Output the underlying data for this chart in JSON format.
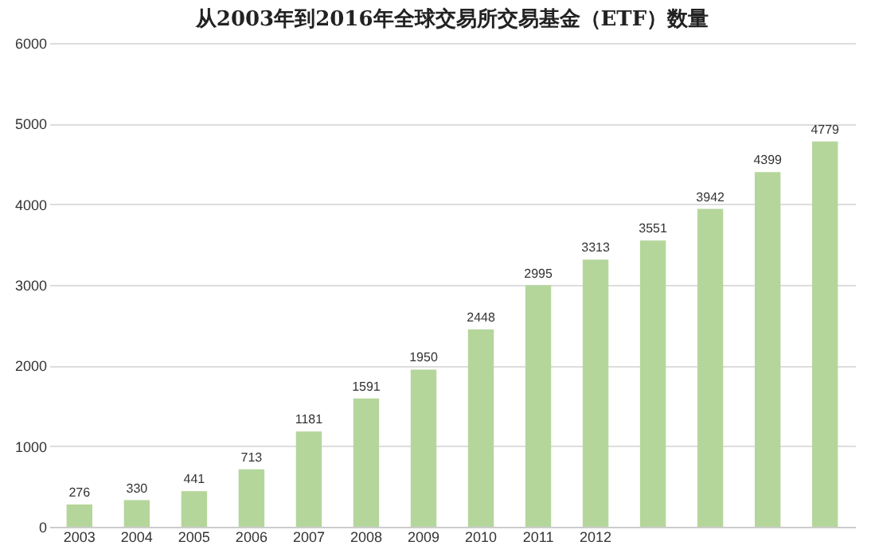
{
  "chart_data": {
    "type": "bar",
    "title": "从2003年到2016年全球交易所交易基金（ETF）数量",
    "categories": [
      "2003",
      "2004",
      "2005",
      "2006",
      "2007",
      "2008",
      "2009",
      "2010",
      "2011",
      "2012",
      null,
      null,
      null,
      null
    ],
    "values": [
      276,
      330,
      441,
      713,
      1181,
      1591,
      1950,
      2448,
      2995,
      3313,
      3551,
      3942,
      4399,
      4779
    ],
    "color": "#b5d69b",
    "ylim": [
      0,
      6000
    ],
    "yticks": [
      0,
      1000,
      2000,
      3000,
      4000,
      5000,
      6000
    ],
    "grid": "y",
    "data_labels": true
  }
}
